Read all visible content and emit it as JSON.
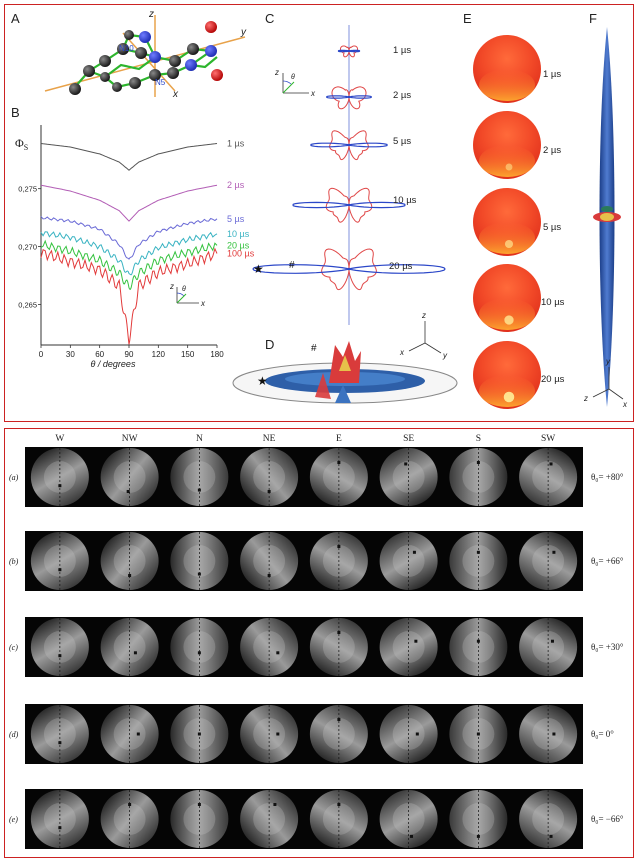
{
  "top_figure": {
    "panel_letters": [
      "A",
      "B",
      "C",
      "D",
      "E",
      "F"
    ],
    "molecule": {
      "axis_labels": [
        "z",
        "y",
        "x"
      ],
      "atom_labels": [
        "N10",
        "N5"
      ]
    },
    "chart_b": {
      "ylabel": "Φ",
      "ylabel_sub": "S",
      "xlabel": "θ / degrees",
      "inset_axes": [
        "z",
        "θ",
        "x"
      ]
    },
    "panel_c": {
      "axes": [
        "z",
        "θ",
        "x"
      ],
      "times": [
        "1 µs",
        "2 µs",
        "5 µs",
        "10 µs",
        "20 µs"
      ],
      "markers": [
        "★",
        "#"
      ]
    },
    "panel_d": {
      "axes": [
        "z",
        "x",
        "y"
      ],
      "markers": [
        "#",
        "★"
      ]
    },
    "panel_e": {
      "times": [
        "1 µs",
        "2 µs",
        "5 µs",
        "10 µs",
        "20 µs"
      ]
    },
    "panel_f": {
      "axes": [
        "y",
        "z",
        "x"
      ]
    }
  },
  "chart_data": {
    "type": "line",
    "title": "",
    "xlabel": "θ / degrees",
    "ylabel": "Φs",
    "xlim": [
      0,
      180
    ],
    "ylim": [
      0.2615,
      0.2805
    ],
    "x_ticks": [
      "0",
      "30",
      "60",
      "90",
      "120",
      "150",
      "180"
    ],
    "y_ticks": [
      "0,265",
      "0,270",
      "0,275"
    ],
    "grid": false,
    "legend": "series labels at right end",
    "series": [
      {
        "name": "1 µs",
        "color": "#555555",
        "x": [
          0,
          30,
          60,
          80,
          90,
          100,
          120,
          150,
          180
        ],
        "y": [
          0.2789,
          0.2786,
          0.278,
          0.2773,
          0.2766,
          0.2773,
          0.278,
          0.2786,
          0.2789
        ]
      },
      {
        "name": "2 µs",
        "color": "#b25db5",
        "x": [
          0,
          30,
          60,
          80,
          90,
          100,
          120,
          150,
          180
        ],
        "y": [
          0.2753,
          0.2748,
          0.274,
          0.2731,
          0.2722,
          0.2731,
          0.274,
          0.2748,
          0.2753
        ]
      },
      {
        "name": "5 µs",
        "color": "#6a6ad6",
        "x": [
          0,
          30,
          60,
          80,
          90,
          100,
          120,
          150,
          180
        ],
        "y": [
          0.2725,
          0.2722,
          0.2715,
          0.2702,
          0.2688,
          0.2702,
          0.2713,
          0.272,
          0.2724
        ]
      },
      {
        "name": "10 µs",
        "color": "#39b3c2",
        "x": [
          0,
          30,
          60,
          80,
          90,
          100,
          120,
          150,
          180
        ],
        "y": [
          0.2712,
          0.2708,
          0.27,
          0.2688,
          0.2675,
          0.2688,
          0.2699,
          0.2706,
          0.2711
        ]
      },
      {
        "name": "20 µs",
        "color": "#35c23f",
        "x": [
          0,
          30,
          60,
          80,
          90,
          100,
          120,
          150,
          180
        ],
        "y": [
          0.2702,
          0.2696,
          0.2688,
          0.2677,
          0.2665,
          0.2677,
          0.2688,
          0.2695,
          0.2701
        ]
      },
      {
        "name": "100 µs",
        "color": "#e23a3a",
        "x": [
          0,
          30,
          60,
          80,
          90,
          100,
          120,
          150,
          180
        ],
        "y": [
          0.2695,
          0.2687,
          0.268,
          0.2666,
          0.262,
          0.2666,
          0.2678,
          0.2685,
          0.2694
        ]
      }
    ]
  },
  "bottom_figure": {
    "directions": [
      "W",
      "NW",
      "N",
      "NE",
      "E",
      "SE",
      "S",
      "SW"
    ],
    "rows": [
      {
        "label": "(a)",
        "theta": "θ₀= +80°"
      },
      {
        "label": "(b)",
        "theta": "θ₀= +66°"
      },
      {
        "label": "(c)",
        "theta": "θ₀= +30°"
      },
      {
        "label": "(d)",
        "theta": "θ₀=  0°"
      },
      {
        "label": "(e)",
        "theta": "θ₀= −66°"
      }
    ]
  }
}
